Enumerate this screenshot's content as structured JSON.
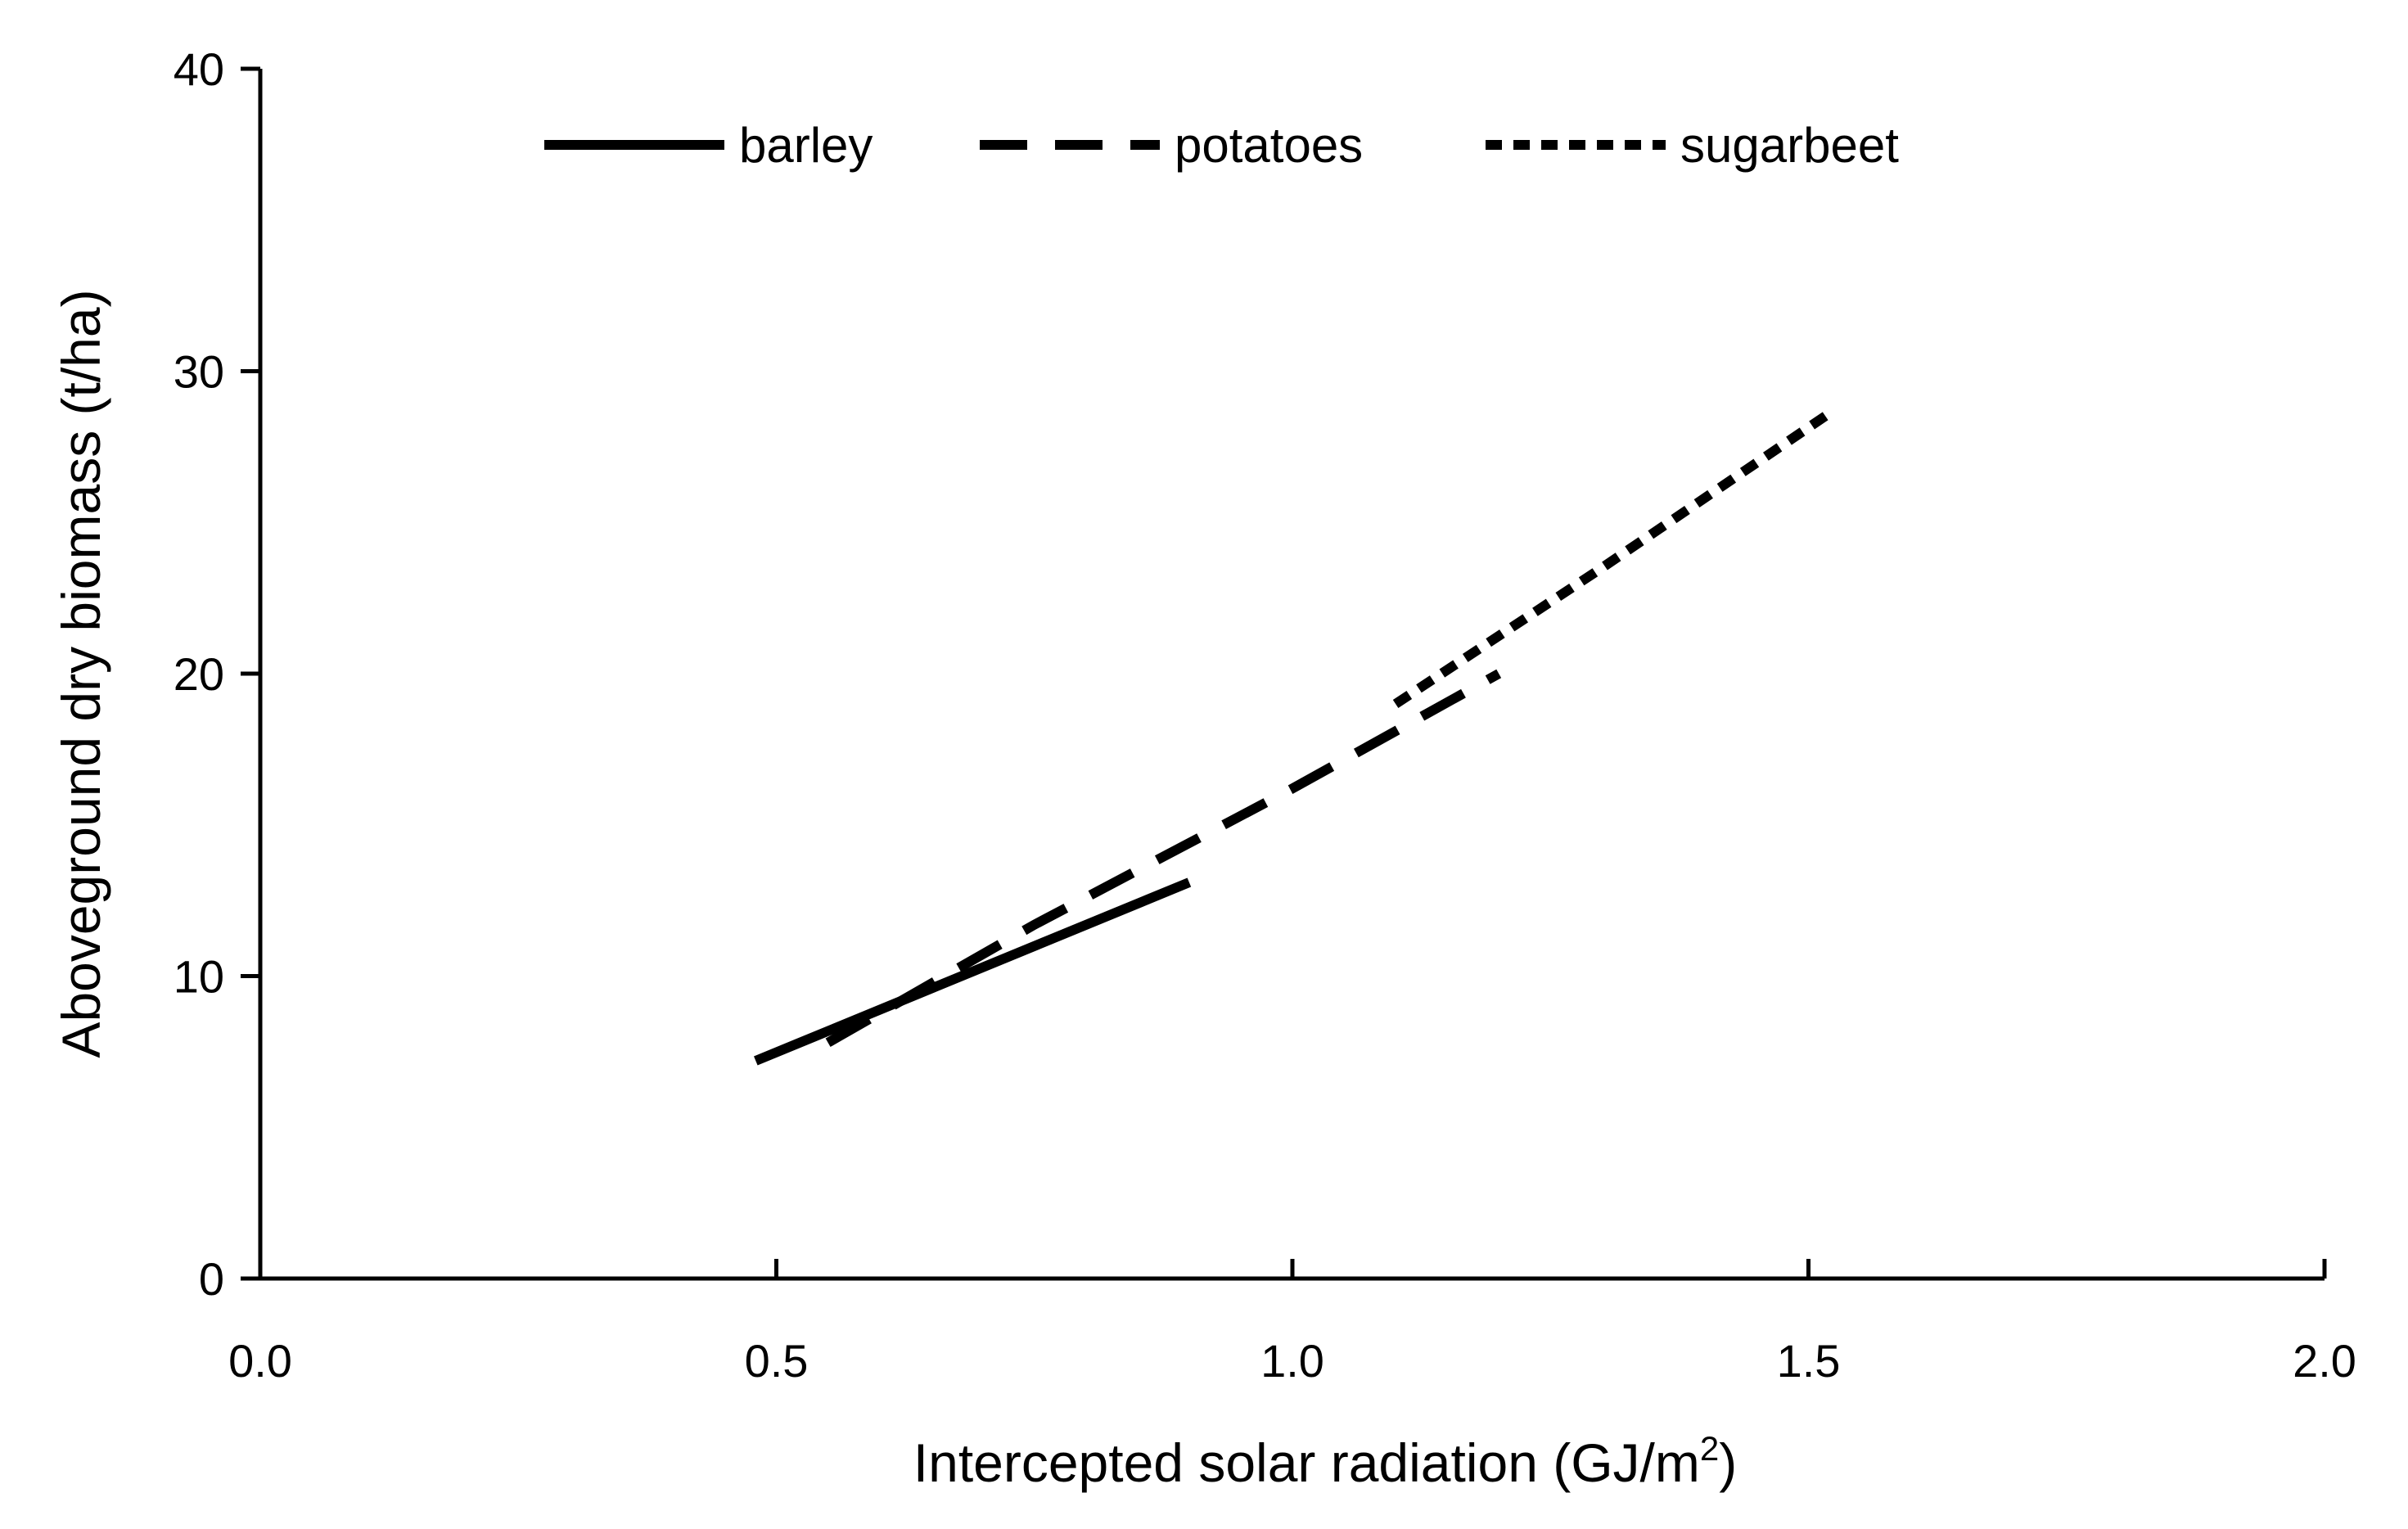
{
  "chart_data": {
    "type": "line",
    "title": "",
    "xlabel": "Intercepted solar radiation (GJ/m",
    "xlabel_superscript": "2",
    "xlabel_suffix": ")",
    "ylabel": "Aboveground dry biomass (t/ha)",
    "xlim": [
      0.0,
      2.0
    ],
    "ylim": [
      0,
      40
    ],
    "x_ticks": [
      "0.0",
      "0.5",
      "1.0",
      "1.5",
      "2.0"
    ],
    "y_ticks": [
      "0",
      "10",
      "20",
      "30",
      "40"
    ],
    "grid": false,
    "legend_position": "top",
    "line_color": "#000000",
    "series": [
      {
        "name": "barley",
        "style": "solid",
        "x": [
          0.48,
          0.9
        ],
        "y": [
          7.2,
          13.1
        ]
      },
      {
        "name": "potatoes",
        "style": "long-dash",
        "x": [
          0.55,
          0.75,
          1.0,
          1.2
        ],
        "y": [
          7.8,
          11.7,
          16.2,
          20.0
        ]
      },
      {
        "name": "sugarbeet",
        "style": "short-dash",
        "x": [
          1.1,
          1.3,
          1.52
        ],
        "y": [
          19.0,
          23.5,
          28.6
        ]
      }
    ]
  }
}
